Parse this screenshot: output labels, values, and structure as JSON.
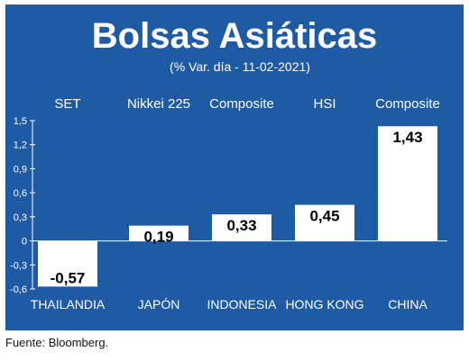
{
  "chart_data": {
    "type": "bar",
    "title": "Bolsas Asiáticas",
    "subtitle": "(% Var. día - 11-02-2021)",
    "indices": [
      "SET",
      "Nikkei 225",
      "Composite",
      "HSI",
      "Composite"
    ],
    "categories": [
      "THAILANDIA",
      "JAPÓN",
      "INDONESIA",
      "HONG KONG",
      "CHINA"
    ],
    "values": [
      -0.57,
      0.19,
      0.33,
      0.45,
      1.43
    ],
    "value_labels": [
      "-0,57",
      "0,19",
      "0,33",
      "0,45",
      "1,43"
    ],
    "ylim": [
      -0.6,
      1.5
    ],
    "yticks": [
      -0.6,
      -0.3,
      0,
      0.3,
      0.6,
      0.9,
      1.2,
      1.5
    ],
    "ytick_labels": [
      "-0,6",
      "-0,3",
      "0",
      "0,3",
      "0,6",
      "0,9",
      "1,2",
      "1,5"
    ],
    "grid": false,
    "colors": {
      "background": "#1f5aa5",
      "bar": "#ffffff",
      "text": "#ffffff",
      "value_text": "#000000"
    }
  },
  "source": "Fuente: Bloomberg."
}
